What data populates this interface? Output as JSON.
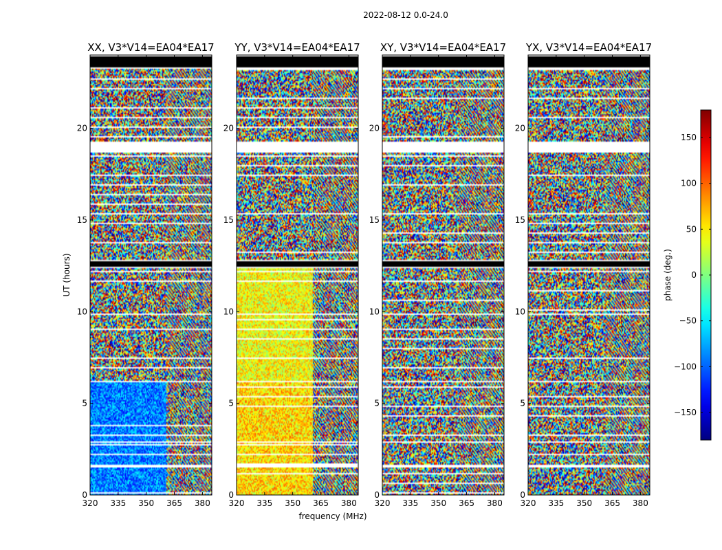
{
  "suptitle": "2022-08-12 0.0-24.0",
  "chart_data": {
    "type": "heatmap",
    "panels": [
      {
        "title": "XX, V3*V14=EA04*EA17",
        "variant": "xx"
      },
      {
        "title": "YY, V3*V14=EA04*EA17",
        "variant": "yy"
      },
      {
        "title": "XY, V3*V14=EA04*EA17",
        "variant": "xy"
      },
      {
        "title": "YX, V3*V14=EA04*EA17",
        "variant": "yx"
      }
    ],
    "xlabel": "frequency (MHz)",
    "ylabel": "UT (hours)",
    "xlim": [
      320,
      385
    ],
    "ylim": [
      0,
      24
    ],
    "xticks": [
      320,
      335,
      350,
      365,
      380
    ],
    "yticks": [
      0,
      5,
      10,
      15,
      20
    ],
    "colorbar": {
      "label": "phase (deg.)",
      "range": [
        -180,
        180
      ],
      "ticks": [
        150,
        100,
        50,
        0,
        -50,
        -100,
        -150
      ],
      "colormap": "jet"
    },
    "flagged_time_ranges_hours": [
      [
        12.4,
        12.8
      ],
      [
        18.7,
        19.3
      ],
      [
        23.3,
        24.0
      ],
      [
        9.8,
        9.9
      ],
      [
        6.1,
        6.2
      ],
      [
        2.8,
        2.9
      ],
      [
        1.5,
        1.6
      ]
    ],
    "zero_data_time_ranges_hours": [
      [
        12.45,
        12.75
      ],
      [
        23.35,
        23.95
      ]
    ]
  }
}
